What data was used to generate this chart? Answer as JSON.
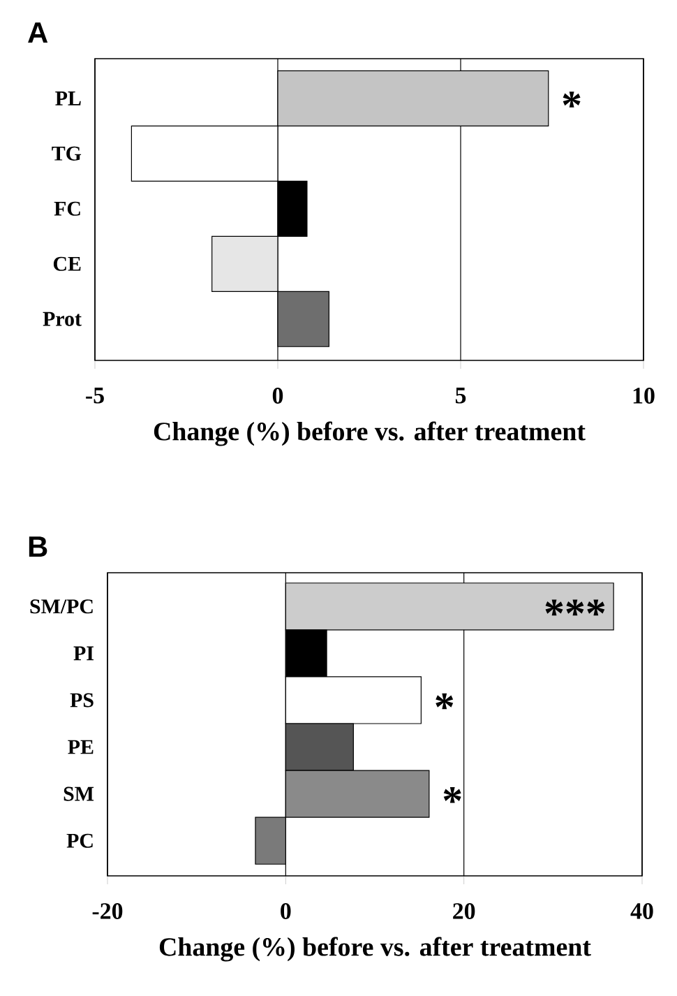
{
  "chart_data": [
    {
      "type": "bar",
      "title": "A",
      "orientation": "horizontal",
      "categories": [
        "PL",
        "TG",
        "FC",
        "CE",
        "Prot"
      ],
      "values": [
        7.4,
        -4.0,
        0.8,
        -1.8,
        1.4
      ],
      "colors": [
        "#c4c4c4",
        "#ffffff",
        "#000000",
        "#e6e6e6",
        "#6e6e6e"
      ],
      "xlim": [
        -5,
        10
      ],
      "xticks": [
        -5,
        0,
        5,
        10
      ],
      "grid": "x",
      "xlabel": "Change (%) before vs. after treatment",
      "annotations": [
        {
          "text": "*",
          "x": 7.4,
          "y": "PL"
        }
      ]
    },
    {
      "type": "bar",
      "title": "B",
      "orientation": "horizontal",
      "categories": [
        "SM/PC",
        "PI",
        "PS",
        "PE",
        "SM",
        "PC"
      ],
      "values": [
        36.8,
        4.6,
        15.2,
        7.6,
        16.1,
        -3.4
      ],
      "colors": [
        "#cccccc",
        "#000000",
        "#ffffff",
        "#555555",
        "#8a8a8a",
        "#7a7a7a"
      ],
      "xlim": [
        -20,
        40
      ],
      "xticks": [
        -20,
        0,
        20,
        40
      ],
      "grid": "x",
      "xlabel": "Change (%) before vs. after treatment",
      "annotations": [
        {
          "text": "***",
          "x": 36.8,
          "y": "SM/PC"
        },
        {
          "text": "*",
          "x": 15.2,
          "y": "PS"
        },
        {
          "text": "*",
          "x": 16.1,
          "y": "SM"
        }
      ]
    }
  ]
}
